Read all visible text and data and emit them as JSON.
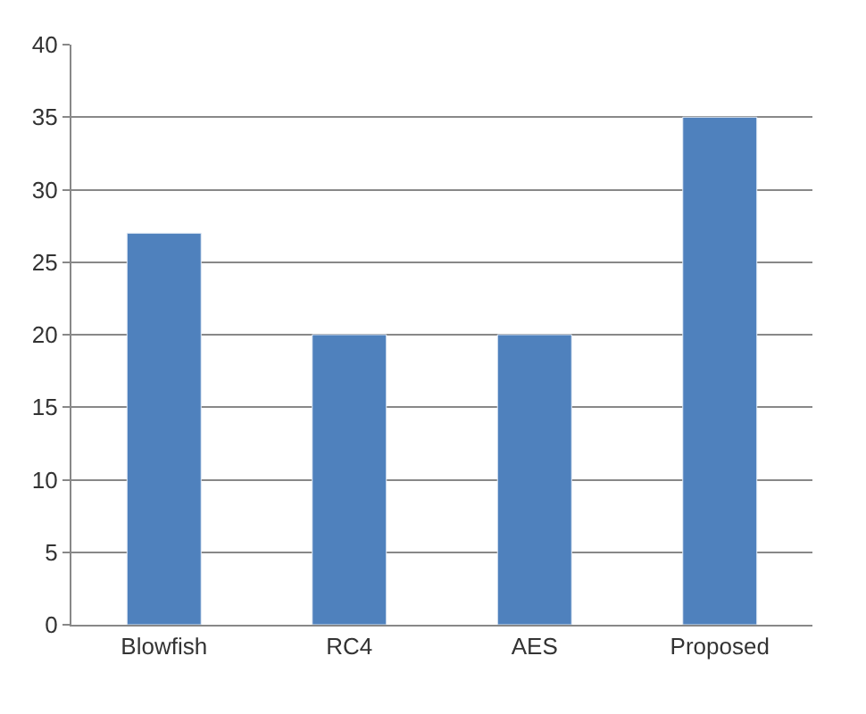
{
  "chart_data": {
    "type": "bar",
    "categories": [
      "Blowfish",
      "RC4",
      "AES",
      "Proposed"
    ],
    "values": [
      27,
      20,
      20,
      35
    ],
    "color": "#4f81bd",
    "ylim": [
      0,
      40
    ],
    "yticks": [
      0,
      5,
      10,
      15,
      20,
      25,
      30,
      35,
      40
    ],
    "grid": "y"
  }
}
